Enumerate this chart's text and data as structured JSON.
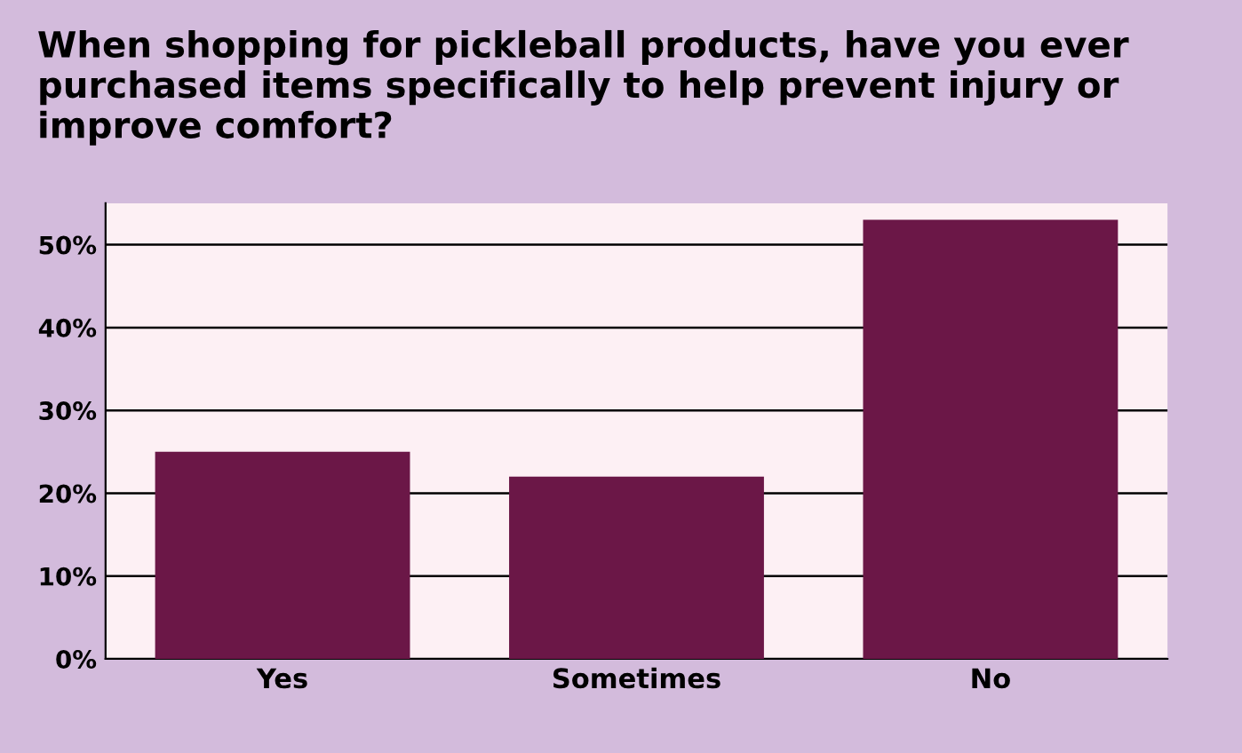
{
  "chart_data": {
    "type": "bar",
    "title": "When shopping for pickleball products, have you ever purchased items specifically to help prevent injury or improve comfort?",
    "categories": [
      "Yes",
      "Sometimes",
      "No"
    ],
    "values": [
      25,
      22,
      53
    ],
    "color": "#6b1747",
    "ylim": [
      0,
      55
    ],
    "yticks": [
      {
        "value": 0,
        "label": "0%"
      },
      {
        "value": 10,
        "label": "10%"
      },
      {
        "value": 20,
        "label": "20%"
      },
      {
        "value": 30,
        "label": "30%"
      },
      {
        "value": 40,
        "label": "40%"
      },
      {
        "value": 50,
        "label": "50%"
      }
    ],
    "grid": "y",
    "legend": false
  }
}
